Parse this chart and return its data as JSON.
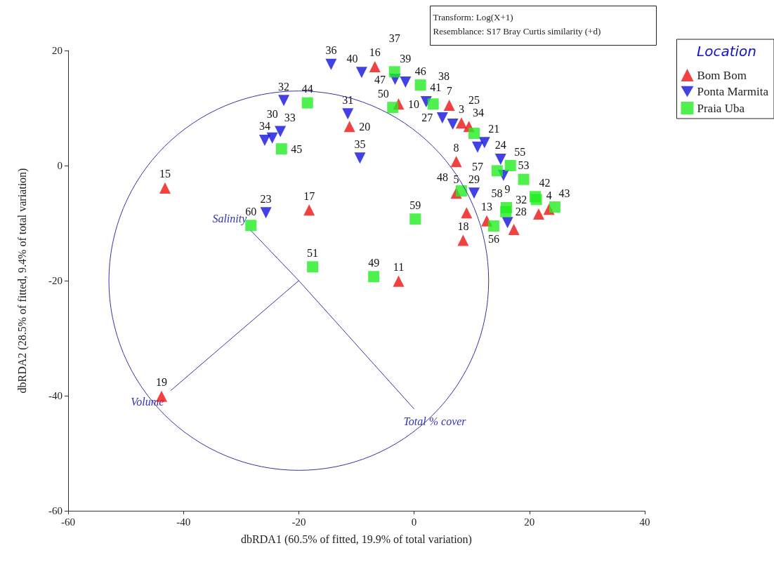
{
  "chart_data": {
    "type": "scatter",
    "xlabel": "dbRDA1 (60.5% of fitted, 19.9% of total variation)",
    "ylabel": "dbRDA2 (28.5% of fitted, 9.4% of total variation)",
    "legend_title": "Location",
    "legend": "top right",
    "grid": false,
    "xlim": [
      -60,
      40
    ],
    "xticks": [
      -60,
      -40,
      -20,
      0,
      20,
      40
    ],
    "ylim": [
      -60,
      20
    ],
    "yticks": [
      -60,
      -40,
      -20,
      0,
      20
    ],
    "annotations": [
      "Transform: Log(X+1)",
      "Resemblance: S17 Bray Curtis similarity (+d)",
      {
        "text": "Salinity",
        "x": -28.3,
        "y": -11.3
      },
      {
        "text": "Volume",
        "x": -42.2,
        "y": -39.1
      },
      {
        "text": "Total % cover",
        "x": 0,
        "y": -42.3
      },
      {
        "text": "15",
        "x": -43.2,
        "y": -3.9
      },
      {
        "text": "17",
        "x": -18.2,
        "y": -7.7
      },
      {
        "text": "19",
        "x": -43.8,
        "y": -40.1
      },
      {
        "text": "11",
        "x": -2.7,
        "y": -20.1
      },
      {
        "text": "16",
        "x": -6.8,
        "y": 17.2
      },
      {
        "text": "10",
        "x": -2.7,
        "y": 10.7
      },
      {
        "text": "20",
        "x": -11.2,
        "y": 6.8
      },
      {
        "text": "7",
        "x": 6.1,
        "y": 10.5
      },
      {
        "text": "3",
        "x": 8.2,
        "y": 7.4
      },
      {
        "text": "34",
        "x": 9.5,
        "y": 6.8
      },
      {
        "text": "8",
        "x": 7.3,
        "y": 0.7
      },
      {
        "text": "5",
        "x": 7.3,
        "y": -4.8
      },
      {
        "text": "18",
        "x": 8.5,
        "y": -13.0
      },
      {
        "text": "13",
        "x": 12.6,
        "y": -9.6
      },
      {
        "text": "4",
        "x": 23.4,
        "y": -7.6
      },
      {
        "text": "36",
        "x": -14.4,
        "y": 17.6
      },
      {
        "text": "40",
        "x": -9.1,
        "y": 16.2
      },
      {
        "text": "32",
        "x": -22.6,
        "y": 11.3
      },
      {
        "text": "34",
        "x": -25.9,
        "y": 4.4
      },
      {
        "text": "30",
        "x": -24.6,
        "y": 4.8
      },
      {
        "text": "33",
        "x": -23.2,
        "y": 5.9
      },
      {
        "text": "31",
        "x": -11.5,
        "y": 9.0
      },
      {
        "text": "35",
        "x": -9.4,
        "y": 1.3
      },
      {
        "text": "39",
        "x": -1.5,
        "y": 14.5
      },
      {
        "text": "47",
        "x": -3.3,
        "y": 15.0
      },
      {
        "text": "41",
        "x": 2.1,
        "y": 11.1
      },
      {
        "text": "23",
        "x": -25.7,
        "y": -8.2
      },
      {
        "text": "21",
        "x": 12.2,
        "y": 4.0
      },
      {
        "text": "24",
        "x": 15.0,
        "y": 1.1
      },
      {
        "text": "29",
        "x": 10.4,
        "y": -4.8
      },
      {
        "text": "9",
        "x": 16.2,
        "y": -9.9
      },
      {
        "text": "27",
        "x": 4.9,
        "y": 8.3
      },
      {
        "text": "44",
        "x": -18.5,
        "y": 10.9
      },
      {
        "text": "45",
        "x": -23.0,
        "y": 2.9
      },
      {
        "text": "37",
        "x": -3.4,
        "y": 16.3
      },
      {
        "text": "50",
        "x": -3.7,
        "y": 10.1
      },
      {
        "text": "46",
        "x": 1.1,
        "y": 14.0
      },
      {
        "text": "38",
        "x": 3.3,
        "y": 10.7
      },
      {
        "text": "25",
        "x": 10.4,
        "y": 5.6
      },
      {
        "text": "57",
        "x": 14.4,
        "y": -0.9
      },
      {
        "text": "55",
        "x": 16.7,
        "y": 0.0
      },
      {
        "text": "53",
        "x": 19.0,
        "y": -2.4
      },
      {
        "text": "42",
        "x": 21.0,
        "y": -5.4
      },
      {
        "text": "32",
        "x": 21.2,
        "y": -5.9
      },
      {
        "text": "43",
        "x": 24.4,
        "y": -7.2
      },
      {
        "text": "48",
        "x": 8.2,
        "y": -4.4
      },
      {
        "text": "28",
        "x": 15.9,
        "y": -8.0
      },
      {
        "text": "58",
        "x": 16.0,
        "y": -7.3
      },
      {
        "text": "56",
        "x": 13.8,
        "y": -10.5
      },
      {
        "text": "59",
        "x": 0.2,
        "y": -9.3
      },
      {
        "text": "60",
        "x": -28.3,
        "y": -10.4
      },
      {
        "text": "51",
        "x": -17.6,
        "y": -17.6
      },
      {
        "text": "49",
        "x": -7.0,
        "y": -19.3
      }
    ],
    "series": [
      {
        "name": "Bom Bom",
        "color": "#ee1111",
        "marker": "triangle",
        "x": [
          -43.2,
          -18.2,
          -43.8,
          -2.7,
          -6.8,
          -2.7,
          -11.2,
          6.1,
          8.2,
          9.5,
          7.3,
          7.3,
          9.1,
          8.5,
          12.6,
          17.3,
          21.6,
          23.4
        ],
        "values": [
          -3.9,
          -7.7,
          -40.1,
          -20.1,
          17.2,
          10.7,
          6.8,
          10.5,
          7.4,
          6.8,
          0.7,
          -4.8,
          -8.2,
          -13.0,
          -9.6,
          -11.1,
          -8.4,
          -7.6
        ]
      },
      {
        "name": "Ponta Marmita",
        "color": "#1111dd",
        "marker": "triangle-down",
        "x": [
          -14.4,
          -9.1,
          -22.6,
          -25.9,
          -24.6,
          -23.2,
          -11.5,
          -9.4,
          -1.5,
          -3.3,
          2.1,
          -25.7,
          11.0,
          12.2,
          15.0,
          15.5,
          10.4,
          16.2,
          4.9,
          6.7
        ],
        "values": [
          17.6,
          16.2,
          11.3,
          4.4,
          4.8,
          5.9,
          9.0,
          1.3,
          14.5,
          15.0,
          11.1,
          -8.2,
          3.2,
          4.0,
          1.1,
          -1.7,
          -4.8,
          -9.9,
          8.3,
          7.2
        ]
      },
      {
        "name": "Praia Uba",
        "color": "#22ee22",
        "marker": "square",
        "x": [
          -18.5,
          -23.0,
          -3.4,
          -3.7,
          1.1,
          3.3,
          10.4,
          14.4,
          16.7,
          19.0,
          21.0,
          21.2,
          24.4,
          8.2,
          15.9,
          16.0,
          13.8,
          0.2,
          -28.3,
          -17.6,
          -7.0
        ],
        "values": [
          10.9,
          2.9,
          16.3,
          10.1,
          14.0,
          10.7,
          5.6,
          -0.9,
          0.0,
          -2.4,
          -5.4,
          -5.9,
          -7.2,
          -4.4,
          -8.0,
          -7.3,
          -10.5,
          -9.3,
          -10.4,
          -17.6,
          -19.3
        ]
      },
      {
        "type": "line",
        "color": "#3333aa",
        "x": [
          -20,
          -28.3
        ],
        "values": [
          -20,
          -11.3
        ]
      },
      {
        "type": "line",
        "color": "#3333aa",
        "x": [
          -20,
          -42.2
        ],
        "values": [
          -20,
          -39.1
        ]
      },
      {
        "type": "line",
        "color": "#3333aa",
        "x": [
          -20,
          0
        ],
        "values": [
          -20,
          -42.3
        ]
      }
    ]
  }
}
